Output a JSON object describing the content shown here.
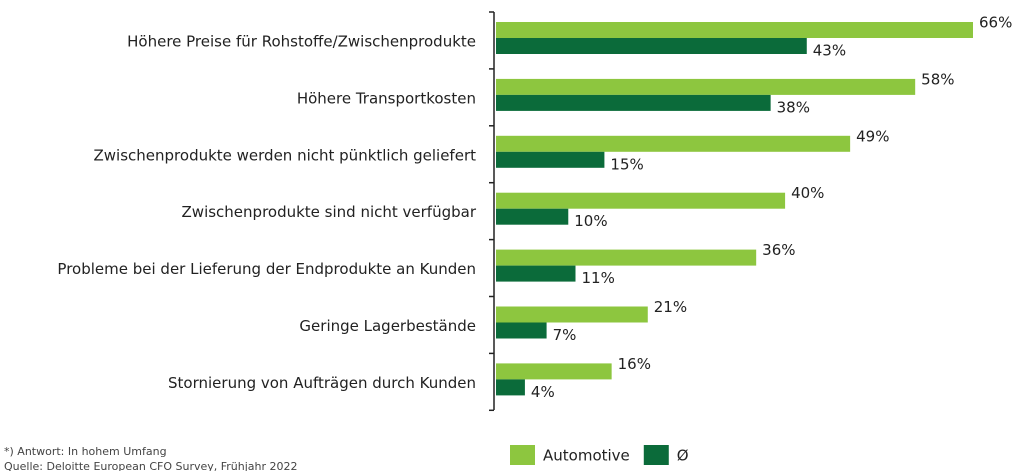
{
  "chart_data": {
    "type": "bar",
    "orientation": "horizontal",
    "categories": [
      "Höhere Preise für Rohstoffe/Zwischenprodukte",
      "Höhere Transportkosten",
      "Zwischenprodukte werden nicht pünktlich geliefert",
      "Zwischenprodukte sind nicht verfügbar",
      "Probleme bei der Lieferung der Endprodukte an Kunden",
      "Geringe Lagerbestände",
      "Stornierung von Aufträgen durch Kunden"
    ],
    "series": [
      {
        "name": "Automotive",
        "color": "#8dc63f",
        "values": [
          66,
          58,
          49,
          40,
          36,
          21,
          16
        ],
        "value_labels": [
          "66%",
          "58%",
          "49%",
          "40%",
          "36%",
          "21%",
          "16%"
        ]
      },
      {
        "name": "Ø",
        "color": "#0b6b3a",
        "values": [
          43,
          38,
          15,
          10,
          11,
          7,
          4
        ],
        "value_labels": [
          "43%",
          "38%",
          "15%",
          "10%",
          "11%",
          "7%",
          "4%"
        ]
      }
    ],
    "annotations": [
      "*) Antwort: In hohem Umfang",
      "Quelle: Deloitte European CFO Survey, Frühjahr 2022"
    ],
    "legend": "bottom"
  }
}
